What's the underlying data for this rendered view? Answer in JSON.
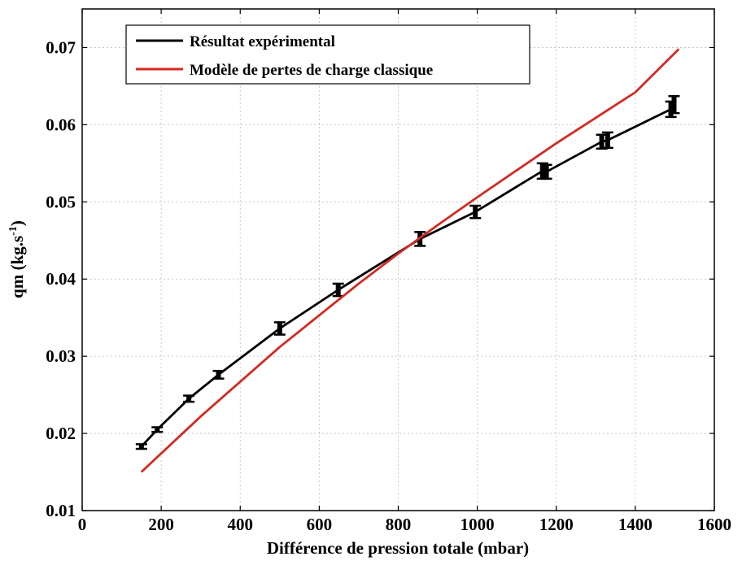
{
  "chart_data": {
    "type": "line",
    "xlabel": "Différence de pression totale (mbar)",
    "ylabel_main": "qm (kg.s",
    "ylabel_sup": "-1",
    "ylabel_tail": ")",
    "xlim": [
      0,
      1600
    ],
    "ylim": [
      0.01,
      0.075
    ],
    "x_ticks": [
      0,
      200,
      400,
      600,
      800,
      1000,
      1200,
      1400,
      1600
    ],
    "x_tick_labels": [
      "0",
      "200",
      "400",
      "600",
      "800",
      "1000",
      "1200",
      "1400",
      "1600"
    ],
    "y_ticks": [
      0.01,
      0.02,
      0.03,
      0.04,
      0.05,
      0.06,
      0.07
    ],
    "y_tick_labels": [
      "0.01",
      "0.02",
      "0.03",
      "0.04",
      "0.05",
      "0.06",
      "0.07"
    ],
    "grid": true,
    "legend_position": "top-left",
    "series": [
      {
        "name": "Résultat expérimental",
        "color": "#000000",
        "x": [
          150,
          190,
          270,
          345,
          500,
          648,
          855,
          995,
          1165,
          1175,
          1315,
          1330,
          1490,
          1498
        ],
        "y": [
          0.0183,
          0.0205,
          0.0245,
          0.0276,
          0.0336,
          0.0386,
          0.0452,
          0.0487,
          0.054,
          0.0539,
          0.0578,
          0.058,
          0.062,
          0.0626
        ],
        "err": [
          0.0003,
          0.0003,
          0.0004,
          0.0005,
          0.0008,
          0.0008,
          0.0009,
          0.0008,
          0.001,
          0.0009,
          0.0009,
          0.001,
          0.001,
          0.0011
        ]
      },
      {
        "name": "Modèle de pertes de charge classique",
        "color": "#d42a22",
        "x": [
          150,
          300,
          500,
          700,
          800,
          900,
          1000,
          1200,
          1400,
          1510
        ],
        "y": [
          0.015,
          0.0222,
          0.0312,
          0.0394,
          0.0433,
          0.047,
          0.0506,
          0.0576,
          0.0642,
          0.0698
        ]
      }
    ]
  }
}
